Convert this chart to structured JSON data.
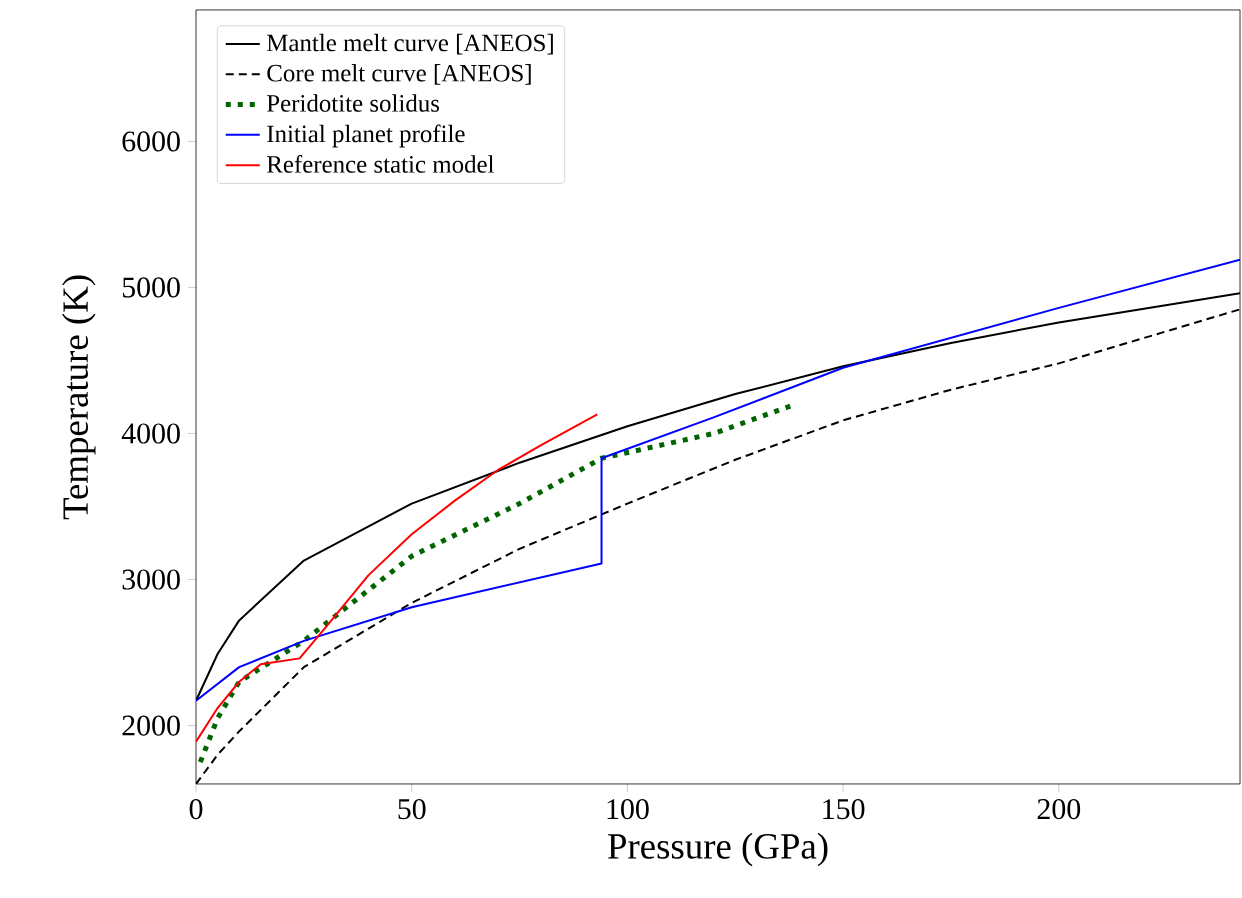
{
  "chart_data": {
    "type": "line",
    "xlabel": "Pressure (GPa)",
    "ylabel": "Temperature (K)",
    "xlim": [
      0,
      242
    ],
    "ylim": [
      1600,
      6900
    ],
    "xticks": [
      0,
      50,
      100,
      150,
      200
    ],
    "yticks": [
      2000,
      3000,
      4000,
      5000,
      6000
    ],
    "grid": false,
    "legend": "top left",
    "marker": "none",
    "series": [
      {
        "name": "Mantle melt curve [ANEOS]",
        "color": "#000000",
        "line_style": "solid",
        "x": [
          0,
          5,
          10,
          25,
          50,
          75,
          100,
          125,
          150,
          175,
          200,
          242
        ],
        "values": [
          2170,
          2490,
          2720,
          3130,
          3520,
          3800,
          4050,
          4270,
          4460,
          4620,
          4760,
          4960
        ]
      },
      {
        "name": "Core melt curve [ANEOS]",
        "color": "#000000",
        "line_style": "dashed",
        "x": [
          0,
          5,
          10,
          25,
          50,
          75,
          100,
          125,
          150,
          175,
          200,
          242
        ],
        "values": [
          1600,
          1800,
          1960,
          2400,
          2840,
          3210,
          3520,
          3820,
          4090,
          4300,
          4480,
          4850
        ]
      },
      {
        "name": "Peridotite solidus",
        "color": "#006400",
        "line_style": "dotted",
        "x": [
          1,
          5,
          10,
          25,
          50,
          75,
          94,
          120,
          138
        ],
        "values": [
          1750,
          2050,
          2300,
          2580,
          3160,
          3520,
          3830,
          4000,
          4190
        ]
      },
      {
        "name": "Initial planet profile",
        "color": "#0000ff",
        "line_style": "solid",
        "x": [
          0,
          10,
          25,
          50,
          94,
          94,
          120,
          150,
          200,
          242
        ],
        "values": [
          2170,
          2400,
          2580,
          2810,
          3110,
          3830,
          4110,
          4450,
          4860,
          5190
        ]
      },
      {
        "name": "Reference static model",
        "color": "#ff0000",
        "line_style": "solid",
        "x": [
          0,
          5,
          10,
          15,
          24,
          30,
          40,
          50,
          60,
          70,
          80,
          93
        ],
        "values": [
          1890,
          2120,
          2300,
          2420,
          2460,
          2670,
          3030,
          3310,
          3540,
          3750,
          3920,
          4130
        ]
      }
    ]
  }
}
